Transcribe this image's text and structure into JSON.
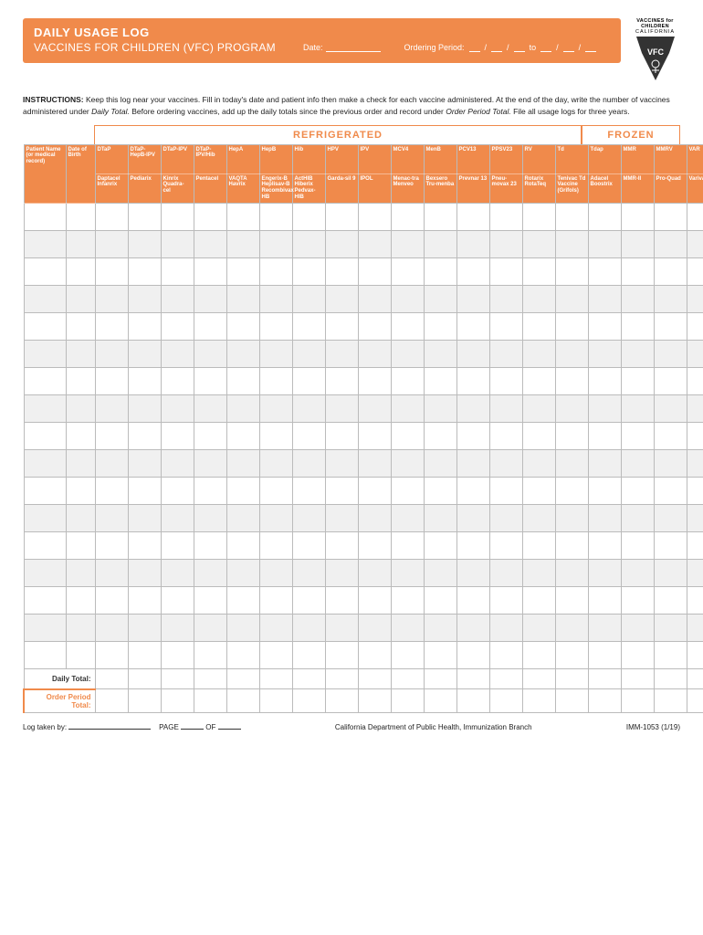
{
  "colors": {
    "primary": "#f08a4b",
    "text": "#222",
    "border": "#bbb",
    "altRow": "#f0f0f0"
  },
  "logo": {
    "line1": "VACCINES for CHILDREN",
    "line2": "CALIFORNIA",
    "badge": "VFC"
  },
  "header": {
    "title": "DAILY USAGE LOG",
    "subtitle": "VACCINES FOR CHILDREN (VFC) PROGRAM",
    "dateLabel": "Date:",
    "orderingLabel": "Ordering Period:",
    "to": "to"
  },
  "instructions": {
    "label": "INSTRUCTIONS:",
    "body1": "Keep this log near your vaccines. Fill in today's date and patient info then make a check for each vaccine administered. At the end of the day, write the number of vaccines administered under ",
    "italic1": "Daily Total.",
    "body2": " Before ordering vaccines, add up the daily totals since the previous order and record under ",
    "italic2": "Order Period Total.",
    "body3": " File all usage logs for three years."
  },
  "sections": {
    "refrigerated": "REFRIGERATED",
    "frozen": "FROZEN"
  },
  "rowHeader": {
    "name": "Patient Name (or medical record)",
    "dob": "Date of Birth"
  },
  "columns": [
    {
      "top": "DTaP",
      "bottom": "Daptacel Infanrix"
    },
    {
      "top": "DTaP-HepB-IPV",
      "bottom": "Pediarix"
    },
    {
      "top": "DTaP-IPV",
      "bottom": "Kinrix Quadra-cel"
    },
    {
      "top": "DTaP-IPV/Hib",
      "bottom": "Pentacel"
    },
    {
      "top": "HepA",
      "bottom": "VAQTA Havrix"
    },
    {
      "top": "HepB",
      "bottom": "Engerix-B Heplisav-B Recombivax HB"
    },
    {
      "top": "Hib",
      "bottom": "ActHIB Hiberix Pedvax-HIB"
    },
    {
      "top": "HPV",
      "bottom": "Garda-sil 9"
    },
    {
      "top": "IPV",
      "bottom": "IPOL"
    },
    {
      "top": "MCV4",
      "bottom": "Menac-tra Menveo"
    },
    {
      "top": "MenB",
      "bottom": "Bexsero Tru-menba"
    },
    {
      "top": "PCV13",
      "bottom": "Prevnar 13"
    },
    {
      "top": "PPSV23",
      "bottom": "Pneu-movax 23"
    },
    {
      "top": "RV",
      "bottom": "Rotarix RotaTeq"
    },
    {
      "top": "Td",
      "bottom": "Tenivac Td Vaccine (Grifols)"
    },
    {
      "top": "Tdap",
      "bottom": "Adacel Boostrix"
    },
    {
      "top": "MMR",
      "bottom": "MMR-II"
    },
    {
      "top": "MMRV",
      "bottom": "Pro-Quad"
    },
    {
      "top": "VAR",
      "bottom": "Varivax"
    }
  ],
  "dataRowCount": 17,
  "totals": {
    "daily": "Daily Total:",
    "order": "Order Period Total:"
  },
  "footer": {
    "logTaken": "Log taken by:",
    "page": "PAGE",
    "of": "OF",
    "dept": "California Department of Public Health, Immunization Branch",
    "form": "IMM-1053 (1/19)"
  }
}
